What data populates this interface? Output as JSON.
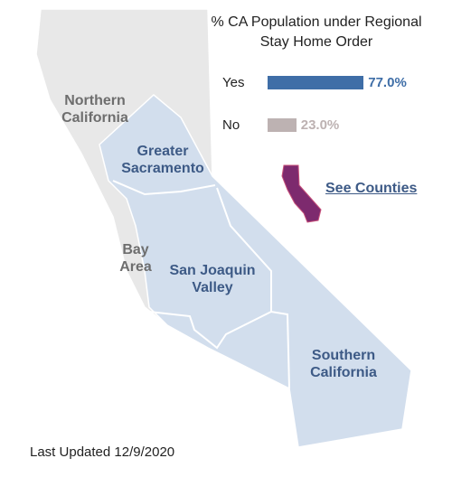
{
  "chart_data": {
    "type": "bar",
    "title": "% CA Population under Regional Stay Home Order",
    "categories": [
      "Yes",
      "No"
    ],
    "values": [
      77.0,
      23.0
    ],
    "value_labels": [
      "77.0%",
      "23.0%"
    ],
    "colors": [
      "#3f6ea7",
      "#bdb2b2"
    ],
    "xlim": [
      0,
      100
    ]
  },
  "map": {
    "regions": [
      {
        "label": "Northern California"
      },
      {
        "label": "Greater Sacramento"
      },
      {
        "label": "Bay Area"
      },
      {
        "label": "San Joaquin Valley"
      },
      {
        "label": "Southern California"
      }
    ],
    "link": "See Counties"
  },
  "footer": "Last Updated 12/9/2020"
}
